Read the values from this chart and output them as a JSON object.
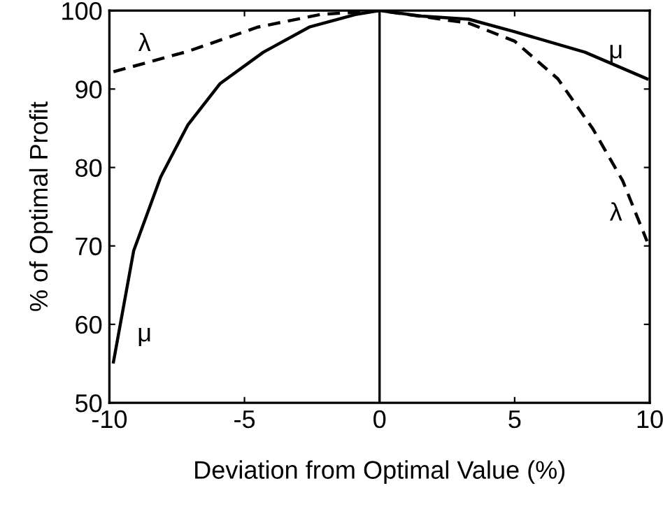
{
  "chart_data": {
    "type": "line",
    "xlabel": "Deviation from Optimal Value (%)",
    "ylabel": "% of Optimal Profit",
    "xlim": [
      -10,
      10
    ],
    "ylim": [
      50,
      100
    ],
    "xticks": [
      -10,
      -5,
      0,
      5,
      10
    ],
    "yticks": [
      50,
      60,
      70,
      80,
      90,
      100
    ],
    "grid": false,
    "legend": false,
    "series": [
      {
        "name": "μ",
        "color": "#000000",
        "line_style": "solid",
        "x": [
          -9.85,
          -9.1,
          -8.1,
          -7.1,
          -5.9,
          -4.3,
          -2.6,
          -0.9,
          0,
          1.55,
          3.3,
          5.0,
          7.6,
          9.9
        ],
        "values": [
          55.2,
          69.4,
          78.8,
          85.4,
          90.7,
          94.7,
          97.9,
          99.5,
          100,
          99.3,
          98.9,
          97.3,
          94.7,
          91.3
        ]
      },
      {
        "name": "λ",
        "color": "#000000",
        "line_style": "dashed",
        "x": [
          -9.85,
          -7.1,
          -4.5,
          -2.2,
          0,
          3.3,
          5.0,
          6.6,
          7.9,
          9.0,
          9.9
        ],
        "values": [
          92.2,
          94.8,
          97.9,
          99.5,
          100,
          98.4,
          96.1,
          91.3,
          84.9,
          78.3,
          70.6
        ]
      }
    ],
    "ref_lines": [
      {
        "axis": "x",
        "value": 0
      }
    ]
  }
}
